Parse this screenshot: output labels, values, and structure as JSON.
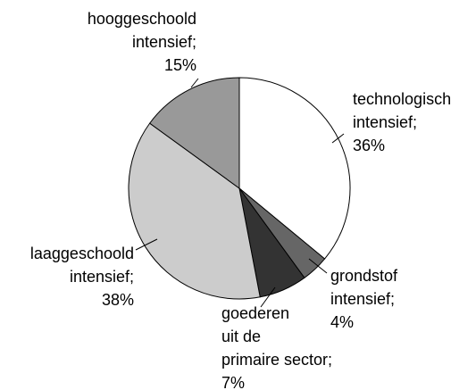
{
  "chart_data": {
    "type": "pie",
    "categories": [
      [
        "technologisch",
        "intensief;"
      ],
      [
        "grondstof",
        "intensief;"
      ],
      [
        "goederen",
        "uit de",
        "primaire sector;"
      ],
      [
        "laaggeschoold",
        "intensief;"
      ],
      [
        "hooggeschoold",
        "intensief;"
      ]
    ],
    "values": [
      36,
      4,
      7,
      38,
      15
    ],
    "value_labels": [
      "36%",
      "4%",
      "7%",
      "38%",
      "15%"
    ],
    "colors": [
      "#ffffff",
      "#666666",
      "#333333",
      "#cccccc",
      "#999999"
    ]
  }
}
